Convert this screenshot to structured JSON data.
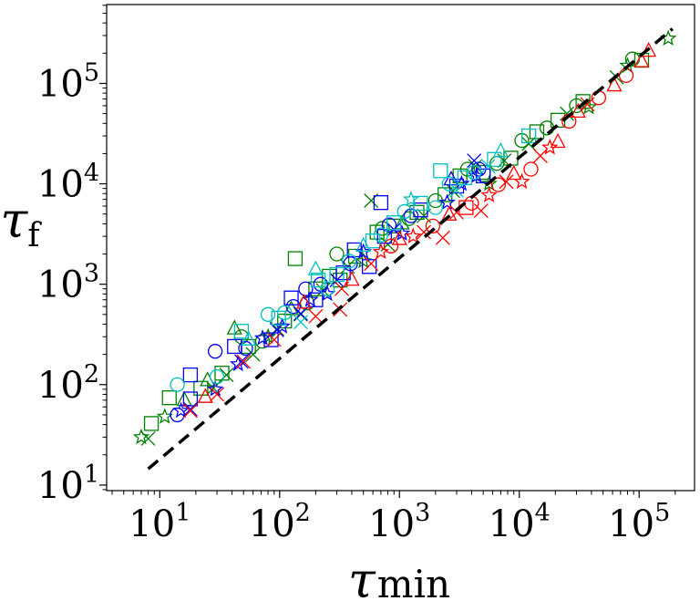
{
  "chart_data": {
    "type": "scatter",
    "title": "",
    "xlabel": "τ",
    "xlabel_sub": "min",
    "ylabel": "τ",
    "ylabel_sub": "f",
    "xscale": "log",
    "yscale": "log",
    "xlim": [
      3.6,
      290000
    ],
    "ylim": [
      8.8,
      610000
    ],
    "grid": false,
    "legend": "none",
    "x_ticks": [
      {
        "value": 10,
        "base": "10",
        "exp": "1"
      },
      {
        "value": 100,
        "base": "10",
        "exp": "2"
      },
      {
        "value": 1000,
        "base": "10",
        "exp": "3"
      },
      {
        "value": 10000,
        "base": "10",
        "exp": "4"
      },
      {
        "value": 100000,
        "base": "10",
        "exp": "5"
      }
    ],
    "y_ticks": [
      {
        "value": 10,
        "base": "10",
        "exp": "1"
      },
      {
        "value": 100,
        "base": "10",
        "exp": "2"
      },
      {
        "value": 1000,
        "base": "10",
        "exp": "3"
      },
      {
        "value": 10000,
        "base": "10",
        "exp": "4"
      },
      {
        "value": 100000,
        "base": "10",
        "exp": "5"
      }
    ],
    "reference_line": {
      "x": [
        8,
        190000
      ],
      "y": [
        14.5,
        350000
      ],
      "style": "dashed",
      "color": "#000000"
    },
    "series": [
      {
        "color": "#008000",
        "points": [
          {
            "m": "star",
            "x": 7,
            "y": 30
          },
          {
            "m": "x",
            "x": 8,
            "y": 29
          },
          {
            "m": "square",
            "x": 8.5,
            "y": 41
          },
          {
            "m": "square",
            "x": 12,
            "y": 74
          },
          {
            "m": "star",
            "x": 11,
            "y": 48
          },
          {
            "m": "triangle",
            "x": 16,
            "y": 70
          },
          {
            "m": "square",
            "x": 22,
            "y": 92
          },
          {
            "m": "triangle",
            "x": 25,
            "y": 110
          },
          {
            "m": "x",
            "x": 28,
            "y": 92
          },
          {
            "m": "square",
            "x": 33,
            "y": 130
          },
          {
            "m": "x",
            "x": 36,
            "y": 125
          },
          {
            "m": "triangle",
            "x": 42,
            "y": 360
          },
          {
            "m": "circle",
            "x": 48,
            "y": 300
          },
          {
            "m": "square",
            "x": 55,
            "y": 240
          },
          {
            "m": "x",
            "x": 60,
            "y": 200
          },
          {
            "m": "circle",
            "x": 72,
            "y": 270
          },
          {
            "m": "star",
            "x": 80,
            "y": 300
          },
          {
            "m": "x",
            "x": 95,
            "y": 360
          },
          {
            "m": "square",
            "x": 110,
            "y": 430
          },
          {
            "m": "triangle",
            "x": 125,
            "y": 560
          },
          {
            "m": "square",
            "x": 135,
            "y": 1800
          },
          {
            "m": "x",
            "x": 150,
            "y": 500
          },
          {
            "m": "circle",
            "x": 170,
            "y": 650
          },
          {
            "m": "square",
            "x": 200,
            "y": 900
          },
          {
            "m": "x",
            "x": 230,
            "y": 870
          },
          {
            "m": "square",
            "x": 260,
            "y": 1200
          },
          {
            "m": "circle",
            "x": 300,
            "y": 2000
          },
          {
            "m": "square",
            "x": 320,
            "y": 1100
          },
          {
            "m": "x",
            "x": 370,
            "y": 1500
          },
          {
            "m": "square",
            "x": 430,
            "y": 1900
          },
          {
            "m": "star",
            "x": 500,
            "y": 1700
          },
          {
            "m": "x",
            "x": 580,
            "y": 6800
          },
          {
            "m": "square",
            "x": 650,
            "y": 3300
          },
          {
            "m": "circle",
            "x": 720,
            "y": 3600
          },
          {
            "m": "x",
            "x": 800,
            "y": 2500
          },
          {
            "m": "square",
            "x": 900,
            "y": 3800
          },
          {
            "m": "triangle",
            "x": 1050,
            "y": 4000
          },
          {
            "m": "circle",
            "x": 1200,
            "y": 4500
          },
          {
            "m": "square",
            "x": 1400,
            "y": 5200
          },
          {
            "m": "x",
            "x": 1600,
            "y": 4800
          },
          {
            "m": "circle",
            "x": 2000,
            "y": 6800
          },
          {
            "m": "square",
            "x": 2400,
            "y": 7800
          },
          {
            "m": "x",
            "x": 2800,
            "y": 8500
          },
          {
            "m": "square",
            "x": 3200,
            "y": 12000
          },
          {
            "m": "circle",
            "x": 3700,
            "y": 14000
          },
          {
            "m": "x",
            "x": 4300,
            "y": 15000
          },
          {
            "m": "square",
            "x": 5000,
            "y": 13000
          },
          {
            "m": "star",
            "x": 5600,
            "y": 10000
          },
          {
            "m": "circle",
            "x": 6500,
            "y": 16000
          },
          {
            "m": "x",
            "x": 7500,
            "y": 17000
          },
          {
            "m": "square",
            "x": 8500,
            "y": 18000
          },
          {
            "m": "circle",
            "x": 10500,
            "y": 27000
          },
          {
            "m": "x",
            "x": 12000,
            "y": 25000
          },
          {
            "m": "square",
            "x": 14000,
            "y": 33000
          },
          {
            "m": "circle",
            "x": 17000,
            "y": 36000
          },
          {
            "m": "square",
            "x": 21000,
            "y": 43000
          },
          {
            "m": "x",
            "x": 25000,
            "y": 50000
          },
          {
            "m": "circle",
            "x": 30000,
            "y": 60000
          },
          {
            "m": "square",
            "x": 34000,
            "y": 66000
          },
          {
            "m": "star",
            "x": 38000,
            "y": 58000
          },
          {
            "m": "x",
            "x": 65000,
            "y": 115000
          },
          {
            "m": "star",
            "x": 80000,
            "y": 150000
          },
          {
            "m": "circle",
            "x": 88000,
            "y": 175000
          },
          {
            "m": "square",
            "x": 105000,
            "y": 170000
          },
          {
            "m": "star",
            "x": 175000,
            "y": 280000
          }
        ]
      },
      {
        "color": "#0000ff",
        "points": [
          {
            "m": "circle",
            "x": 14,
            "y": 50
          },
          {
            "m": "star",
            "x": 15,
            "y": 55
          },
          {
            "m": "x",
            "x": 18,
            "y": 57
          },
          {
            "m": "square",
            "x": 18,
            "y": 125
          },
          {
            "m": "square",
            "x": 18,
            "y": 72
          },
          {
            "m": "circle",
            "x": 29,
            "y": 215
          },
          {
            "m": "star",
            "x": 29,
            "y": 90
          },
          {
            "m": "square",
            "x": 42,
            "y": 240
          },
          {
            "m": "star",
            "x": 45,
            "y": 160
          },
          {
            "m": "x",
            "x": 48,
            "y": 170
          },
          {
            "m": "circle",
            "x": 52,
            "y": 230
          },
          {
            "m": "star",
            "x": 72,
            "y": 290
          },
          {
            "m": "square",
            "x": 85,
            "y": 280
          },
          {
            "m": "x",
            "x": 95,
            "y": 350
          },
          {
            "m": "star",
            "x": 105,
            "y": 380
          },
          {
            "m": "square",
            "x": 125,
            "y": 730
          },
          {
            "m": "circle",
            "x": 130,
            "y": 600
          },
          {
            "m": "x",
            "x": 150,
            "y": 510
          },
          {
            "m": "circle",
            "x": 165,
            "y": 900
          },
          {
            "m": "star",
            "x": 180,
            "y": 700
          },
          {
            "m": "square",
            "x": 200,
            "y": 700
          },
          {
            "m": "circle",
            "x": 220,
            "y": 1000
          },
          {
            "m": "star",
            "x": 250,
            "y": 800
          },
          {
            "m": "x",
            "x": 300,
            "y": 1100
          },
          {
            "m": "square",
            "x": 340,
            "y": 1300
          },
          {
            "m": "circle",
            "x": 390,
            "y": 1600
          },
          {
            "m": "square",
            "x": 420,
            "y": 2200
          },
          {
            "m": "star",
            "x": 500,
            "y": 2100
          },
          {
            "m": "square",
            "x": 560,
            "y": 1500
          },
          {
            "m": "square",
            "x": 700,
            "y": 6500
          },
          {
            "m": "square",
            "x": 750,
            "y": 3000
          },
          {
            "m": "circle",
            "x": 820,
            "y": 3900
          },
          {
            "m": "x",
            "x": 900,
            "y": 3500
          },
          {
            "m": "star",
            "x": 1050,
            "y": 3200
          },
          {
            "m": "circle",
            "x": 1250,
            "y": 4800
          },
          {
            "m": "square",
            "x": 1500,
            "y": 5500
          },
          {
            "m": "star",
            "x": 2500,
            "y": 6500
          },
          {
            "m": "triangle",
            "x": 2700,
            "y": 11000
          },
          {
            "m": "square",
            "x": 3000,
            "y": 9500
          },
          {
            "m": "star",
            "x": 3300,
            "y": 10000
          },
          {
            "m": "x",
            "x": 4200,
            "y": 17000
          },
          {
            "m": "circle",
            "x": 4600,
            "y": 14000
          },
          {
            "m": "star",
            "x": 4400,
            "y": 12000
          },
          {
            "m": "square",
            "x": 5000,
            "y": 12000
          }
        ]
      },
      {
        "color": "#00c0c0",
        "points": [
          {
            "m": "circle",
            "x": 14,
            "y": 100
          },
          {
            "m": "circle",
            "x": 30,
            "y": 120
          },
          {
            "m": "square",
            "x": 48,
            "y": 340
          },
          {
            "m": "triangle",
            "x": 55,
            "y": 280
          },
          {
            "m": "circle",
            "x": 80,
            "y": 500
          },
          {
            "m": "square",
            "x": 98,
            "y": 460
          },
          {
            "m": "circle",
            "x": 110,
            "y": 520
          },
          {
            "m": "x",
            "x": 150,
            "y": 420
          },
          {
            "m": "triangle",
            "x": 200,
            "y": 1400
          },
          {
            "m": "square",
            "x": 210,
            "y": 1100
          },
          {
            "m": "circle",
            "x": 250,
            "y": 900
          },
          {
            "m": "square",
            "x": 300,
            "y": 1250
          },
          {
            "m": "circle",
            "x": 380,
            "y": 1700
          },
          {
            "m": "triangle",
            "x": 500,
            "y": 2400
          },
          {
            "m": "square",
            "x": 600,
            "y": 2700
          },
          {
            "m": "circle",
            "x": 700,
            "y": 3100
          },
          {
            "m": "square",
            "x": 900,
            "y": 4100
          },
          {
            "m": "circle",
            "x": 1100,
            "y": 5300
          },
          {
            "m": "star",
            "x": 1250,
            "y": 7000
          },
          {
            "m": "square",
            "x": 1500,
            "y": 6400
          },
          {
            "m": "circle",
            "x": 2000,
            "y": 5800
          },
          {
            "m": "square",
            "x": 2200,
            "y": 13500
          },
          {
            "m": "circle",
            "x": 2600,
            "y": 10000
          },
          {
            "m": "x",
            "x": 3000,
            "y": 8600
          },
          {
            "m": "square",
            "x": 3500,
            "y": 11500
          },
          {
            "m": "circle",
            "x": 4200,
            "y": 13000
          },
          {
            "m": "x",
            "x": 5500,
            "y": 15000
          },
          {
            "m": "square",
            "x": 6200,
            "y": 17500
          },
          {
            "m": "triangle",
            "x": 7000,
            "y": 21000
          },
          {
            "m": "square",
            "x": 12000,
            "y": 30000
          }
        ]
      },
      {
        "color": "#ff0000",
        "points": [
          {
            "m": "x",
            "x": 18,
            "y": 55
          },
          {
            "m": "triangle",
            "x": 24,
            "y": 75
          },
          {
            "m": "x",
            "x": 30,
            "y": 80
          },
          {
            "m": "x",
            "x": 50,
            "y": 170
          },
          {
            "m": "x",
            "x": 90,
            "y": 280
          },
          {
            "m": "triangle",
            "x": 160,
            "y": 650
          },
          {
            "m": "x",
            "x": 200,
            "y": 480
          },
          {
            "m": "x",
            "x": 320,
            "y": 560
          },
          {
            "m": "x",
            "x": 330,
            "y": 900
          },
          {
            "m": "triangle",
            "x": 400,
            "y": 1100
          },
          {
            "m": "x",
            "x": 580,
            "y": 1600
          },
          {
            "m": "star",
            "x": 700,
            "y": 2100
          },
          {
            "m": "circle",
            "x": 850,
            "y": 2400
          },
          {
            "m": "triangle",
            "x": 1000,
            "y": 2800
          },
          {
            "m": "star",
            "x": 1300,
            "y": 3000
          },
          {
            "m": "x",
            "x": 1600,
            "y": 3300
          },
          {
            "m": "circle",
            "x": 1900,
            "y": 3800
          },
          {
            "m": "x",
            "x": 2300,
            "y": 2900
          },
          {
            "m": "triangle",
            "x": 2600,
            "y": 4900
          },
          {
            "m": "x",
            "x": 3000,
            "y": 5200
          },
          {
            "m": "square",
            "x": 3600,
            "y": 5800
          },
          {
            "m": "circle",
            "x": 4000,
            "y": 6400
          },
          {
            "m": "x",
            "x": 4800,
            "y": 5400
          },
          {
            "m": "star",
            "x": 5600,
            "y": 7700
          },
          {
            "m": "circle",
            "x": 6700,
            "y": 9800
          },
          {
            "m": "x",
            "x": 7800,
            "y": 10500
          },
          {
            "m": "triangle",
            "x": 9000,
            "y": 12500
          },
          {
            "m": "star",
            "x": 10500,
            "y": 10500
          },
          {
            "m": "circle",
            "x": 12500,
            "y": 14000
          },
          {
            "m": "x",
            "x": 15000,
            "y": 19000
          },
          {
            "m": "star",
            "x": 18000,
            "y": 23000
          },
          {
            "m": "triangle",
            "x": 21000,
            "y": 26000
          },
          {
            "m": "circle",
            "x": 26000,
            "y": 42000
          },
          {
            "m": "triangle",
            "x": 31000,
            "y": 52000
          },
          {
            "m": "x",
            "x": 37000,
            "y": 62000
          },
          {
            "m": "circle",
            "x": 46000,
            "y": 72000
          },
          {
            "m": "triangle",
            "x": 62000,
            "y": 95000
          },
          {
            "m": "circle",
            "x": 78000,
            "y": 120000
          },
          {
            "m": "triangle",
            "x": 105000,
            "y": 165000
          },
          {
            "m": "triangle",
            "x": 120000,
            "y": 210000
          }
        ]
      }
    ]
  }
}
